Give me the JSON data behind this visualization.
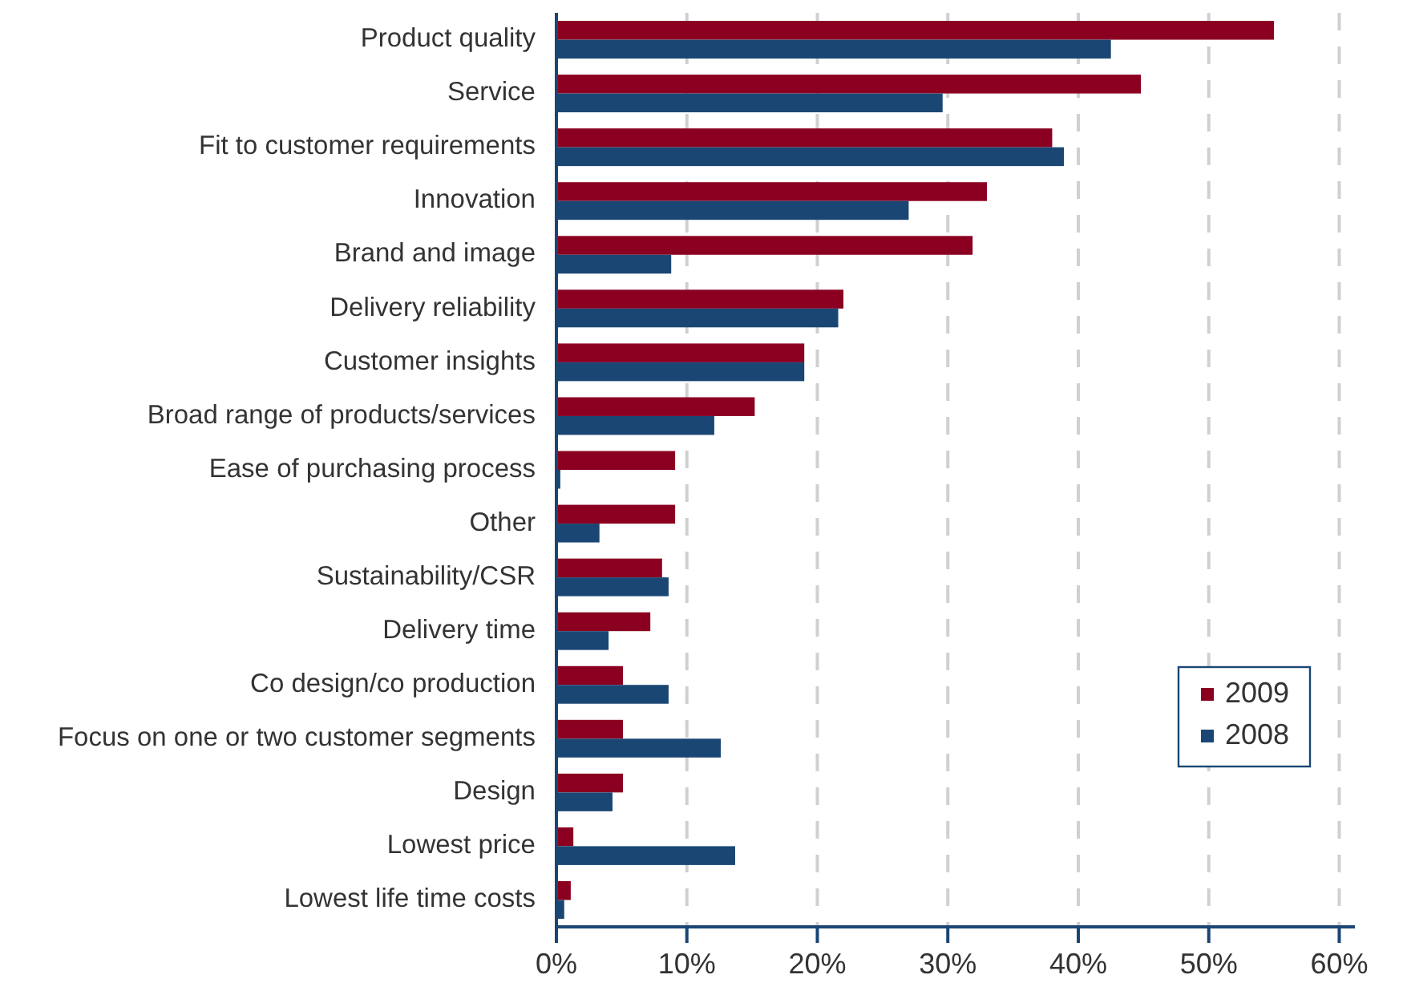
{
  "chart_data": {
    "type": "bar",
    "orientation": "horizontal",
    "categories": [
      "Product quality",
      "Service",
      "Fit to customer requirements",
      "Innovation",
      "Brand and image",
      "Delivery reliability",
      "Customer insights",
      "Broad range of products/services",
      "Ease of purchasing process",
      "Other",
      "Sustainability/CSR",
      "Delivery time",
      "Co design/co production",
      "Focus on one or two customer segments",
      "Design",
      "Lowest price",
      "Lowest life time costs"
    ],
    "series": [
      {
        "name": "2009",
        "color": "#8b0021",
        "values": [
          55.0,
          44.8,
          38.0,
          33.0,
          31.9,
          22.0,
          19.0,
          15.2,
          9.1,
          9.1,
          8.1,
          7.2,
          5.1,
          5.1,
          5.1,
          1.3,
          1.1
        ]
      },
      {
        "name": "2008",
        "color": "#1a4674",
        "values": [
          42.5,
          29.6,
          38.9,
          27.0,
          8.8,
          21.6,
          19.0,
          12.1,
          0.3,
          3.3,
          8.6,
          4.0,
          8.6,
          12.6,
          4.3,
          13.7,
          0.6
        ]
      }
    ],
    "xlim": [
      0,
      61.2
    ],
    "xticks": [
      {
        "value": 0,
        "label": "0%"
      },
      {
        "value": 10,
        "label": "10%"
      },
      {
        "value": 20,
        "label": "20%"
      },
      {
        "value": 30,
        "label": "30%"
      },
      {
        "value": 40,
        "label": "40%"
      },
      {
        "value": 50,
        "label": "50%"
      },
      {
        "value": 60,
        "label": "60%"
      }
    ],
    "grid": "x",
    "legend": "bottom right"
  }
}
